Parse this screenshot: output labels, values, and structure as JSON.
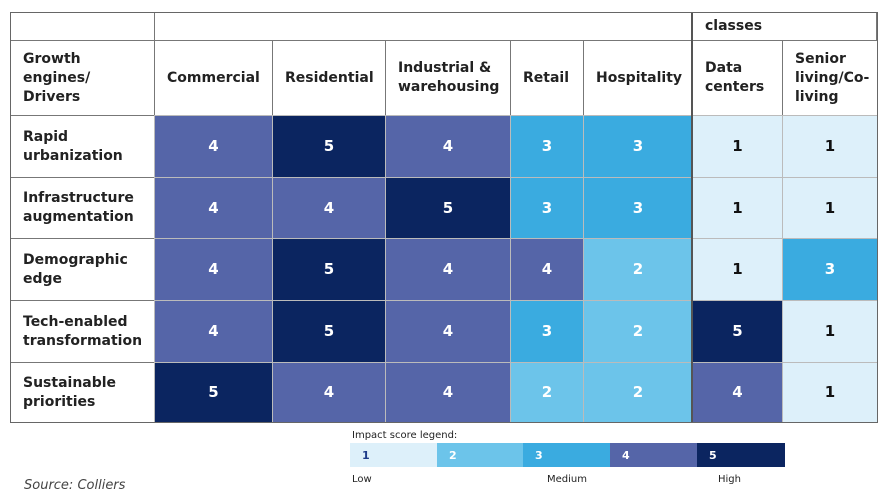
{
  "table": {
    "top_header": {
      "group_label": "classes"
    },
    "header": [
      "Growth engines/ Drivers",
      "Commercial",
      "Residential",
      "Industrial & warehousing",
      "Retail",
      "Hospitality",
      "Data centers",
      "Senior living/Co-living"
    ],
    "rows": [
      [
        "Rapid urbanization",
        4,
        5,
        4,
        3,
        3,
        1,
        1
      ],
      [
        "Infrastructure augmentation",
        4,
        4,
        5,
        3,
        3,
        1,
        1
      ],
      [
        "Demographic edge",
        4,
        5,
        4,
        4,
        2,
        1,
        3
      ],
      [
        "Tech-enabled transformation",
        4,
        5,
        4,
        3,
        2,
        5,
        1
      ],
      [
        "Sustainable priorities",
        5,
        4,
        4,
        2,
        2,
        4,
        1
      ]
    ]
  },
  "legend": {
    "title": "Impact score legend:",
    "items": [
      {
        "score": 1,
        "color": "#ddf0fa"
      },
      {
        "score": 2,
        "color": "#6cc4ea"
      },
      {
        "score": 3,
        "color": "#3aabe0"
      },
      {
        "score": 4,
        "color": "#5565a8"
      },
      {
        "score": 5,
        "color": "#0b2560"
      }
    ],
    "low": "Low",
    "medium": "Medium",
    "high": "High"
  },
  "source": "Source: Colliers"
}
